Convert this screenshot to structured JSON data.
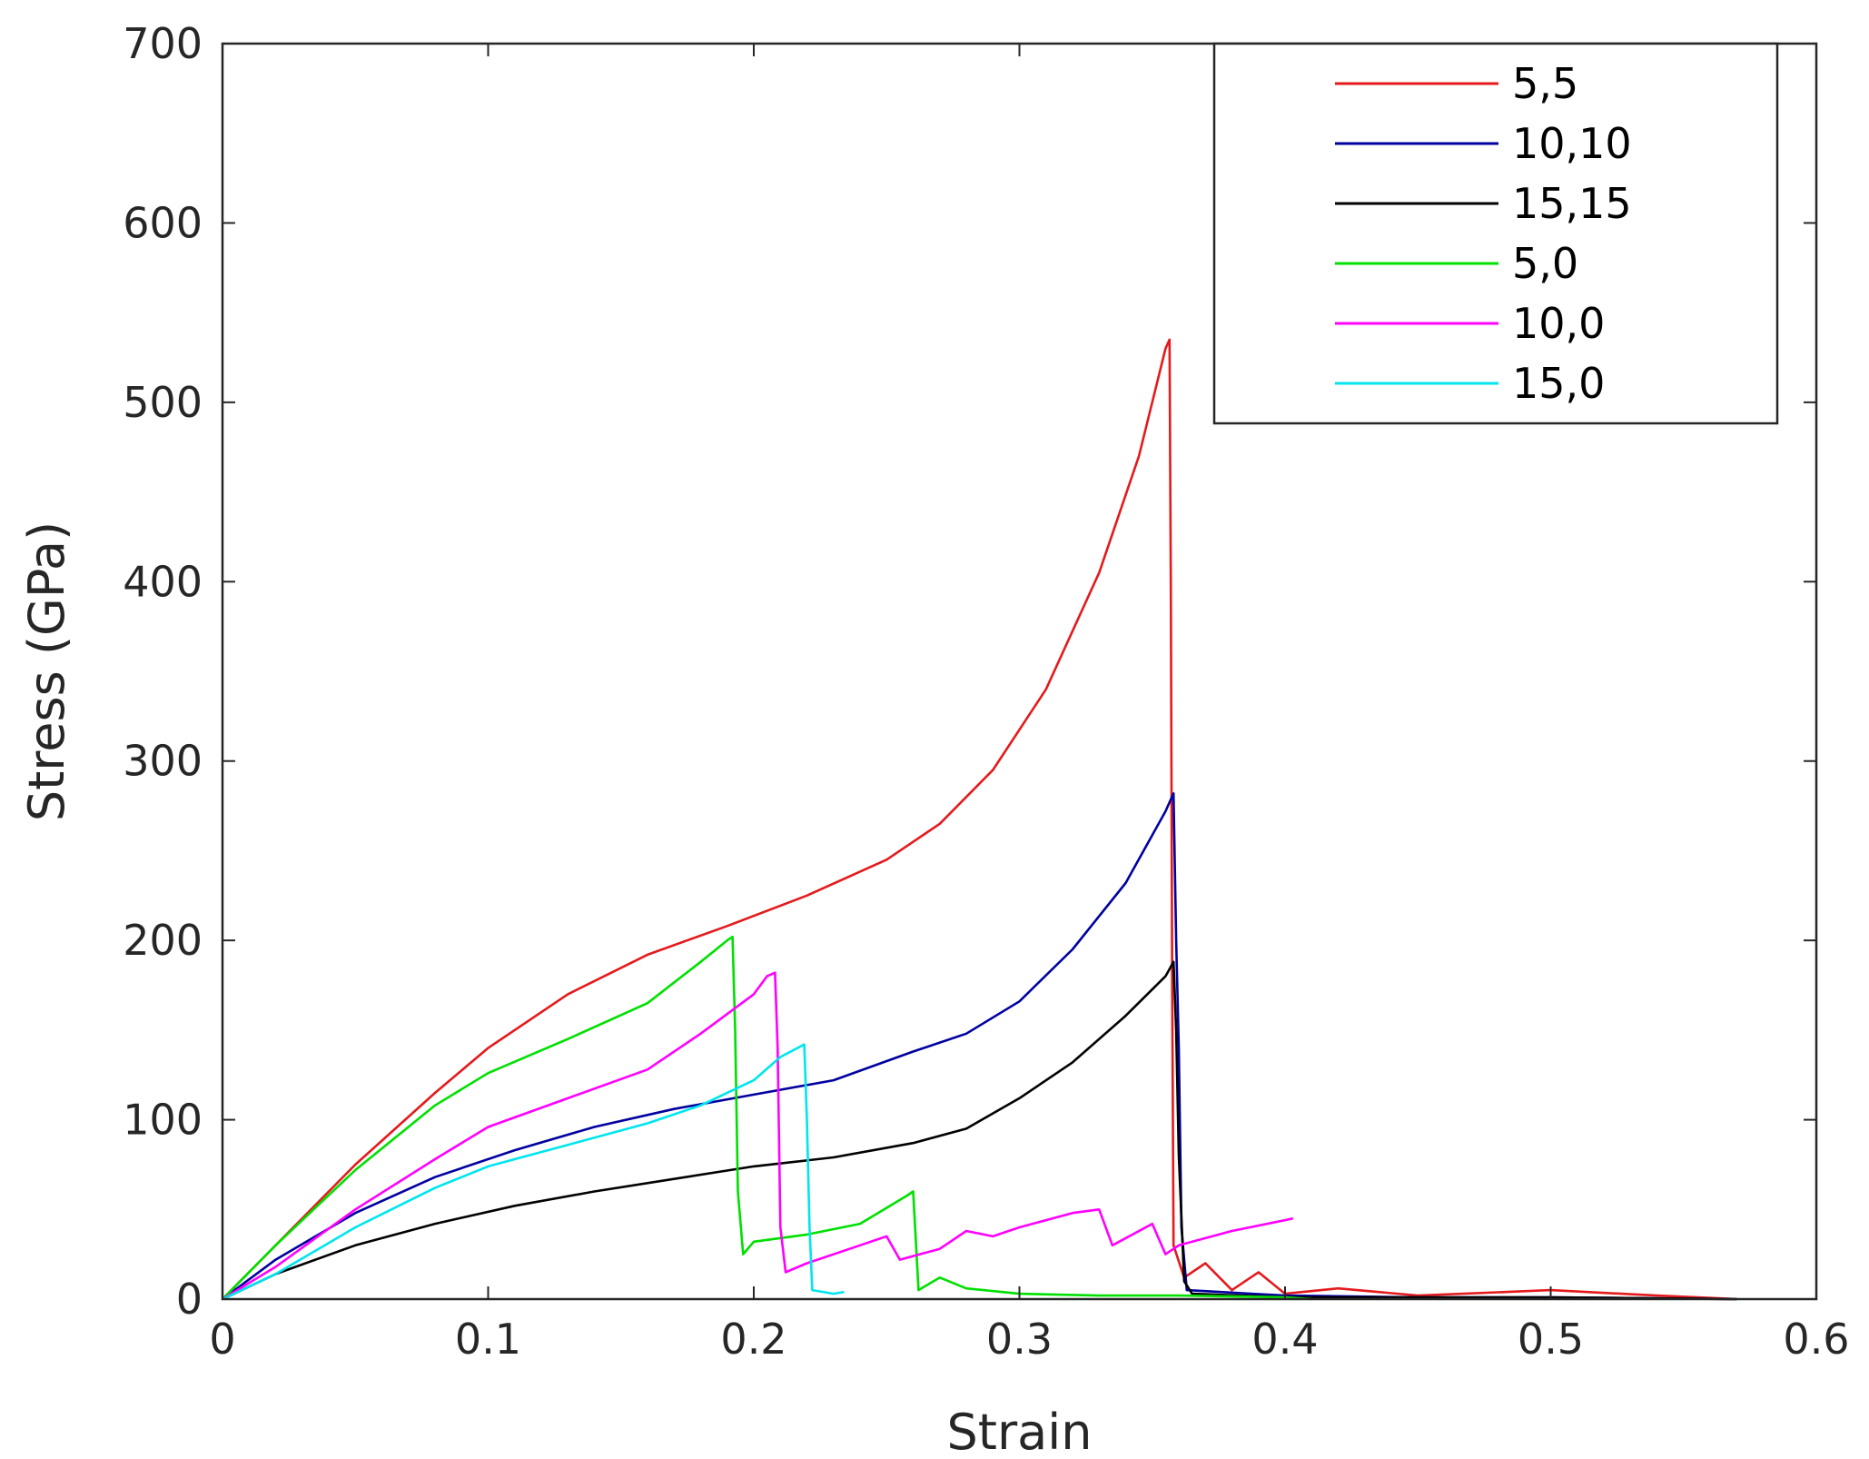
{
  "chart_data": {
    "type": "line",
    "title": "",
    "xlabel": "Strain",
    "ylabel": "Stress (GPa)",
    "xlim": [
      0,
      0.6
    ],
    "ylim": [
      0,
      700
    ],
    "xticks": [
      0,
      0.1,
      0.2,
      0.3,
      0.4,
      0.5,
      0.6
    ],
    "xtick_labels": [
      "0",
      "0.1",
      "0.2",
      "0.3",
      "0.4",
      "0.5",
      "0.6"
    ],
    "yticks": [
      0,
      100,
      200,
      300,
      400,
      500,
      600,
      700
    ],
    "ytick_labels": [
      "0",
      "100",
      "200",
      "300",
      "400",
      "500",
      "600",
      "700"
    ],
    "grid": false,
    "legend_position": "top-right",
    "series": [
      {
        "name": "5,5",
        "color": "#e41a1c",
        "points": [
          [
            0,
            0
          ],
          [
            0.02,
            30
          ],
          [
            0.05,
            75
          ],
          [
            0.08,
            115
          ],
          [
            0.1,
            140
          ],
          [
            0.13,
            170
          ],
          [
            0.16,
            192
          ],
          [
            0.19,
            208
          ],
          [
            0.22,
            225
          ],
          [
            0.25,
            245
          ],
          [
            0.27,
            265
          ],
          [
            0.29,
            295
          ],
          [
            0.31,
            340
          ],
          [
            0.33,
            405
          ],
          [
            0.345,
            470
          ],
          [
            0.355,
            530
          ],
          [
            0.3565,
            535
          ],
          [
            0.357,
            400
          ],
          [
            0.3575,
            180
          ],
          [
            0.358,
            30
          ],
          [
            0.362,
            12
          ],
          [
            0.37,
            20
          ],
          [
            0.38,
            5
          ],
          [
            0.39,
            15
          ],
          [
            0.4,
            3
          ],
          [
            0.42,
            6
          ],
          [
            0.45,
            2
          ],
          [
            0.5,
            5
          ],
          [
            0.54,
            2
          ],
          [
            0.57,
            0
          ]
        ]
      },
      {
        "name": "10,10",
        "color": "#0000a0",
        "points": [
          [
            0,
            0
          ],
          [
            0.02,
            22
          ],
          [
            0.05,
            48
          ],
          [
            0.08,
            68
          ],
          [
            0.11,
            83
          ],
          [
            0.14,
            96
          ],
          [
            0.17,
            106
          ],
          [
            0.2,
            114
          ],
          [
            0.23,
            122
          ],
          [
            0.26,
            138
          ],
          [
            0.28,
            148
          ],
          [
            0.3,
            166
          ],
          [
            0.32,
            195
          ],
          [
            0.34,
            232
          ],
          [
            0.355,
            272
          ],
          [
            0.358,
            282
          ],
          [
            0.359,
            200
          ],
          [
            0.36,
            140
          ],
          [
            0.361,
            40
          ],
          [
            0.363,
            5
          ],
          [
            0.4,
            2
          ],
          [
            0.45,
            1
          ],
          [
            0.5,
            1
          ],
          [
            0.57,
            0
          ]
        ]
      },
      {
        "name": "15,15",
        "color": "#000000",
        "points": [
          [
            0,
            0
          ],
          [
            0.02,
            14
          ],
          [
            0.05,
            30
          ],
          [
            0.08,
            42
          ],
          [
            0.11,
            52
          ],
          [
            0.14,
            60
          ],
          [
            0.17,
            67
          ],
          [
            0.2,
            74
          ],
          [
            0.23,
            79
          ],
          [
            0.26,
            87
          ],
          [
            0.28,
            95
          ],
          [
            0.3,
            112
          ],
          [
            0.32,
            132
          ],
          [
            0.34,
            158
          ],
          [
            0.355,
            180
          ],
          [
            0.358,
            188
          ],
          [
            0.359,
            150
          ],
          [
            0.36,
            80
          ],
          [
            0.362,
            10
          ],
          [
            0.365,
            3
          ],
          [
            0.4,
            1
          ],
          [
            0.5,
            1
          ],
          [
            0.57,
            0
          ]
        ]
      },
      {
        "name": "5,0",
        "color": "#00e000",
        "points": [
          [
            0,
            0
          ],
          [
            0.02,
            30
          ],
          [
            0.05,
            72
          ],
          [
            0.08,
            108
          ],
          [
            0.1,
            126
          ],
          [
            0.13,
            145
          ],
          [
            0.16,
            165
          ],
          [
            0.18,
            188
          ],
          [
            0.19,
            200
          ],
          [
            0.192,
            202
          ],
          [
            0.193,
            150
          ],
          [
            0.194,
            60
          ],
          [
            0.196,
            25
          ],
          [
            0.2,
            32
          ],
          [
            0.22,
            36
          ],
          [
            0.24,
            42
          ],
          [
            0.258,
            58
          ],
          [
            0.26,
            60
          ],
          [
            0.262,
            5
          ],
          [
            0.27,
            12
          ],
          [
            0.28,
            6
          ],
          [
            0.3,
            3
          ],
          [
            0.33,
            2
          ],
          [
            0.36,
            2
          ],
          [
            0.4,
            1
          ],
          [
            0.41,
            0
          ]
        ]
      },
      {
        "name": "10,0",
        "color": "#ff00ff",
        "points": [
          [
            0,
            0
          ],
          [
            0.02,
            18
          ],
          [
            0.05,
            50
          ],
          [
            0.08,
            78
          ],
          [
            0.1,
            96
          ],
          [
            0.13,
            112
          ],
          [
            0.16,
            128
          ],
          [
            0.18,
            148
          ],
          [
            0.2,
            170
          ],
          [
            0.205,
            180
          ],
          [
            0.208,
            182
          ],
          [
            0.209,
            140
          ],
          [
            0.21,
            40
          ],
          [
            0.212,
            15
          ],
          [
            0.22,
            20
          ],
          [
            0.24,
            30
          ],
          [
            0.25,
            35
          ],
          [
            0.255,
            22
          ],
          [
            0.27,
            28
          ],
          [
            0.28,
            38
          ],
          [
            0.29,
            35
          ],
          [
            0.3,
            40
          ],
          [
            0.31,
            44
          ],
          [
            0.32,
            48
          ],
          [
            0.33,
            50
          ],
          [
            0.335,
            30
          ],
          [
            0.35,
            42
          ],
          [
            0.355,
            25
          ],
          [
            0.36,
            30
          ],
          [
            0.38,
            38
          ],
          [
            0.4,
            44
          ],
          [
            0.403,
            45
          ]
        ]
      },
      {
        "name": "15,0",
        "color": "#00e5ee",
        "points": [
          [
            0,
            0
          ],
          [
            0.02,
            14
          ],
          [
            0.05,
            40
          ],
          [
            0.08,
            62
          ],
          [
            0.1,
            74
          ],
          [
            0.13,
            86
          ],
          [
            0.16,
            98
          ],
          [
            0.18,
            108
          ],
          [
            0.2,
            122
          ],
          [
            0.21,
            135
          ],
          [
            0.219,
            142
          ],
          [
            0.22,
            100
          ],
          [
            0.221,
            40
          ],
          [
            0.222,
            5
          ],
          [
            0.23,
            3
          ],
          [
            0.234,
            4
          ]
        ]
      }
    ]
  }
}
